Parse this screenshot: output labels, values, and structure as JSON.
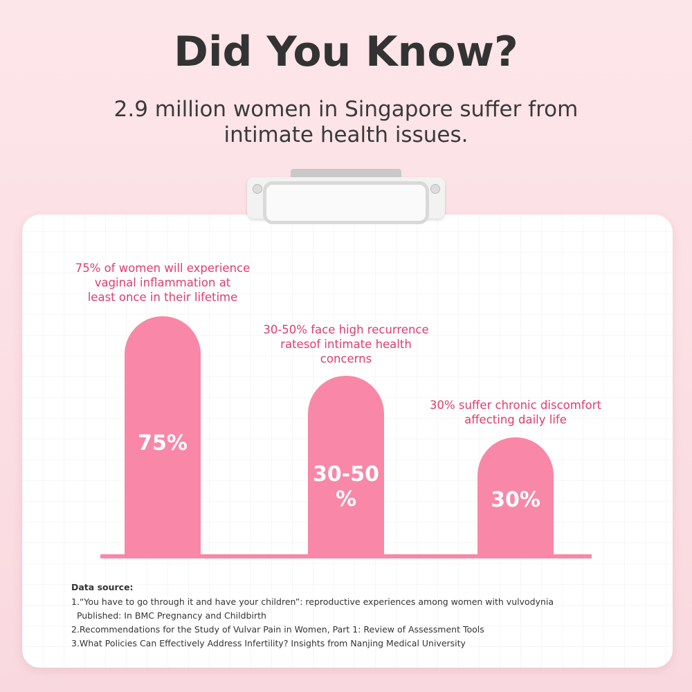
{
  "header": {
    "title": "Did You Know?",
    "subtitle": [
      "2.9 million women in Singapore suffer from",
      "intimate health issues."
    ]
  },
  "chart": {
    "items": [
      {
        "caption": [
          "75% of women will experience",
          "vaginal inflammation at",
          "least once in their lifetime"
        ],
        "label": "75%"
      },
      {
        "caption": [
          "30-50% face high recurrence",
          "ratesof intimate health",
          "concerns"
        ],
        "label": [
          "30-50",
          "%"
        ]
      },
      {
        "caption": [
          "30% suffer chronic discomfort",
          "affecting daily life"
        ],
        "label": "30%"
      }
    ]
  },
  "sources": {
    "heading": "Data source:",
    "items": [
      [
        "1.“You have to go through it and have your children”: reproductive experiences among women with vulvodynia",
        "  Published: In BMC Pregnancy and Childbirth"
      ],
      [
        "2.Recommendations for the Study of Vulvar Pain in Women, Part 1: Review of Assessment Tools"
      ],
      [
        "3.What Policies Can Effectively Address Infertility? Insights from Nanjing Medical University"
      ]
    ]
  }
}
